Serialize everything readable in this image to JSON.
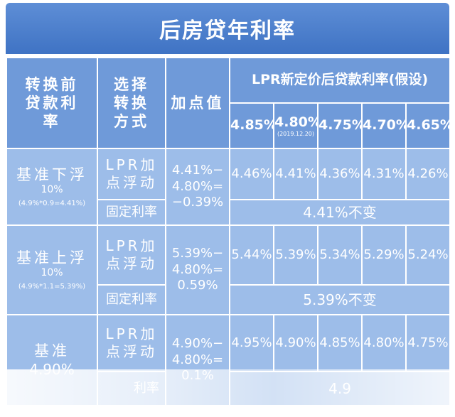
{
  "title": "后房贷年利率",
  "header": {
    "before_rate": "转换前贷款利率",
    "method": "选择转换方式",
    "spread": "加点值",
    "lpr_title": "LPR新定价后贷款利率(假设)",
    "rates": [
      {
        "value": "4.85%",
        "note": ""
      },
      {
        "value": "4.80%",
        "note": "(2019.12.20)"
      },
      {
        "value": "4.75%",
        "note": ""
      },
      {
        "value": "4.70%",
        "note": ""
      },
      {
        "value": "4.65%",
        "note": ""
      }
    ]
  },
  "rows": [
    {
      "category": "基准下浮",
      "pct": "10%",
      "formula": "(4.9%*0.9=4.41%)",
      "method_lpr": "LPR加点浮动",
      "method_fixed": "固定利率",
      "spread_lines": [
        "4.41%−",
        "4.80%=",
        "−0.39%"
      ],
      "values": [
        "4.46%",
        "4.41%",
        "4.36%",
        "4.31%",
        "4.26%"
      ],
      "fixed_text": "4.41%不变"
    },
    {
      "category": "基准上浮",
      "pct": "10%",
      "formula": "(4.9%*1.1=5.39%)",
      "method_lpr": "LPR加点浮动",
      "method_fixed": "固定利率",
      "spread_lines": [
        "5.39%−",
        "4.80%=",
        "0.59%"
      ],
      "values": [
        "5.44%",
        "5.39%",
        "5.34%",
        "5.29%",
        "5.24%"
      ],
      "fixed_text": "5.39%不变"
    },
    {
      "category": "基准",
      "pct": "4.90%",
      "formula": "",
      "method_lpr": "LPR加点浮动",
      "method_fixed": "利率",
      "spread_lines": [
        "4.90%−",
        "4.80%=",
        "0.1%"
      ],
      "values": [
        "4.95%",
        "4.90%",
        "4.85%",
        "4.80%",
        "4.75%"
      ],
      "fixed_text": "4.9"
    }
  ]
}
